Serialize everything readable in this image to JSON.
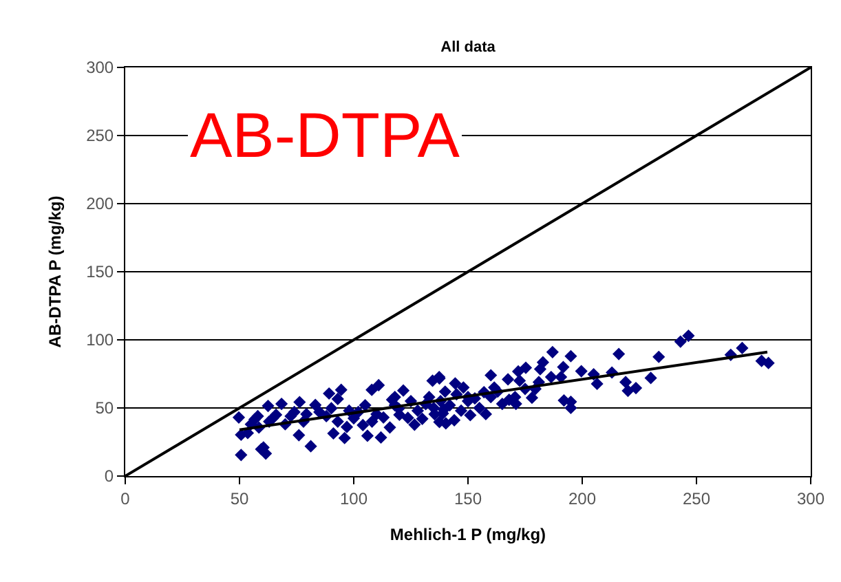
{
  "chart_data": {
    "type": "scatter",
    "title": "All data",
    "xlabel": "Mehlich-1 P (mg/kg)",
    "ylabel": "AB-DTPA P (mg/kg)",
    "annotations": [
      "AB-DTPA"
    ],
    "xlim": [
      0,
      300
    ],
    "ylim": [
      0,
      300
    ],
    "xticks": [
      0,
      50,
      100,
      150,
      200,
      250,
      300
    ],
    "yticks": [
      0,
      50,
      100,
      150,
      200,
      250,
      300
    ],
    "grid": "y",
    "marker": "diamond",
    "series": [
      {
        "color": "#000080",
        "x": [
          246.5,
          243,
          270,
          265,
          278.5,
          281.5,
          233.5,
          230,
          216,
          213,
          219,
          220,
          223.5,
          206.5,
          205,
          199.6,
          195,
          187,
          182.8,
          181.6,
          191.7,
          190.7,
          186.4,
          195,
          192,
          195,
          181,
          179.5,
          178,
          175.3,
          172,
          172.6,
          167.5,
          175,
          170.6,
          171,
          165,
          168,
          157.8,
          160,
          161.5,
          157,
          160,
          150,
          151,
          144.4,
          148,
          137.5,
          139,
          137.5,
          144,
          50.7,
          50.7,
          49.7,
          53.6,
          60.5,
          61.5,
          59.5,
          56.6,
          62.5,
          68.4,
          64.5,
          58.5,
          72.4,
          76.3,
          81.2,
          76,
          79.3,
          83.2,
          89.2,
          90.2,
          94.5,
          93,
          91.1,
          96,
          97,
          100,
          104,
          106,
          107.9,
          110.9,
          111.9,
          110,
          115.8,
          116.8,
          121.7,
          119.7,
          123.7,
          126.6,
          131.5,
          134.5,
          137.4,
          135.4,
          139.4,
          140.3,
          55,
          58,
          63,
          66,
          70,
          74,
          78,
          85,
          88,
          102,
          105,
          108,
          113,
          118,
          120,
          125,
          128,
          130,
          133,
          135,
          138,
          142,
          145,
          147,
          153,
          155,
          163,
          140,
          150,
          118,
          98,
          93
        ],
        "values": [
          103,
          98.7,
          94,
          89,
          84.5,
          83,
          87.5,
          72,
          89.6,
          76,
          69,
          62.6,
          64.6,
          67.7,
          74.7,
          77,
          88,
          91,
          83.5,
          78.5,
          80,
          72.7,
          72.7,
          50,
          55.5,
          54.5,
          69,
          64,
          57.5,
          79.5,
          76.8,
          70,
          71,
          64,
          58,
          53,
          53,
          56,
          45.5,
          74,
          65,
          61.6,
          58,
          55,
          44.7,
          68,
          65,
          71.7,
          46,
          39.7,
          41,
          15.5,
          30.3,
          43,
          31.6,
          21,
          16.5,
          19.7,
          41.6,
          51.5,
          53,
          42.3,
          35.6,
          44,
          54.3,
          21.9,
          30,
          45.5,
          52.2,
          60.6,
          49.8,
          63.3,
          56.6,
          31.3,
          27.9,
          36,
          42.4,
          37.4,
          29.6,
          63.3,
          66.7,
          28.3,
          45.4,
          35.7,
          56,
          62.8,
          49.5,
          42.7,
          37.7,
          52.8,
          70,
          72.7,
          45.4,
          48.8,
          38.7,
          38,
          44,
          40,
          45,
          38,
          47,
          40,
          47,
          44,
          47,
          52,
          40,
          43,
          52,
          45,
          55,
          48,
          42,
          58,
          50,
          55,
          52,
          60,
          48,
          57,
          50,
          62,
          62,
          58,
          58,
          48,
          40
        ]
      },
      {
        "type": "line",
        "marker": "none",
        "color": "#000000",
        "x": [
          50,
          281
        ],
        "values": [
          34,
          91
        ]
      },
      {
        "type": "line",
        "marker": "none",
        "color": "#000000",
        "x": [
          0,
          300
        ],
        "values": [
          0,
          300
        ]
      }
    ]
  }
}
